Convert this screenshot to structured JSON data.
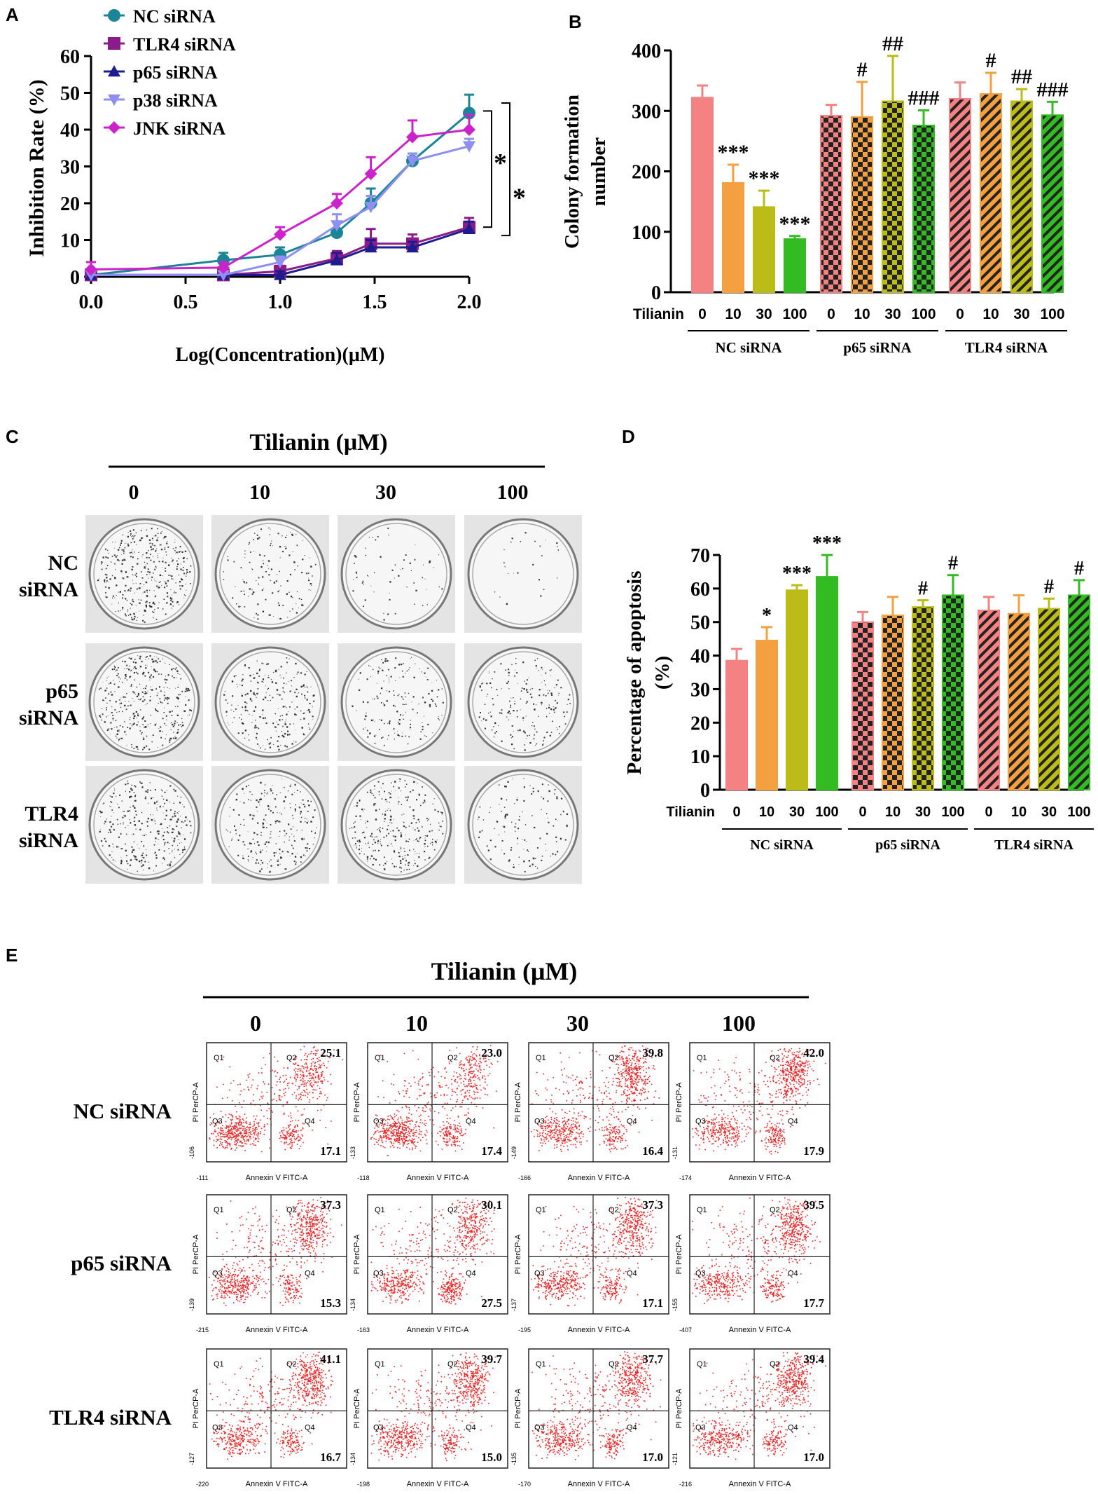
{
  "panels": {
    "a": "A",
    "b": "B",
    "c": "C",
    "d": "D",
    "e": "E"
  },
  "colors": {
    "nc_si": "#1a8596",
    "tlr4_si": "#8b1a8b",
    "p65_si": "#1c1c8f",
    "p38_si": "#8f8ff0",
    "jnk_si": "#cc22cc",
    "pink": "#f58282",
    "orange": "#f5a040",
    "olive": "#bcbc18",
    "green": "#33bb22",
    "dot": "#ee2222"
  },
  "chart_data": [
    {
      "id": "A",
      "type": "line",
      "title": "",
      "xlabel": "Log(Concentration)(μM)",
      "ylabel": "Inhibition Rate (%)",
      "xlim": [
        0,
        2
      ],
      "ylim": [
        0,
        60
      ],
      "xticks": [
        "0.0",
        "0.5",
        "1.0",
        "1.5",
        "2.0"
      ],
      "yticks": [
        "0",
        "10",
        "20",
        "30",
        "40",
        "50",
        "60"
      ],
      "significance": [
        "*",
        "*"
      ],
      "series": [
        {
          "name": "NC siRNA",
          "marker": "circle",
          "x": [
            0,
            0.7,
            1.0,
            1.3,
            1.48,
            1.7,
            2.0
          ],
          "values": [
            0.5,
            4.5,
            6,
            12,
            20,
            31.5,
            44.5
          ],
          "err": [
            1,
            2,
            2,
            3,
            4,
            2,
            5
          ]
        },
        {
          "name": "TLR4 siRNA",
          "marker": "square",
          "x": [
            0,
            0.7,
            1.0,
            1.3,
            1.48,
            1.7,
            2.0
          ],
          "values": [
            0.5,
            0.5,
            1.5,
            5,
            9,
            9,
            13.5
          ],
          "err": [
            1,
            1,
            1.5,
            2,
            4,
            2.5,
            2.5
          ]
        },
        {
          "name": "p65 siRNA",
          "marker": "triangle-up",
          "x": [
            0,
            0.7,
            1.0,
            1.3,
            1.48,
            1.7,
            2.0
          ],
          "values": [
            0.5,
            0.5,
            0.5,
            4.5,
            8,
            8,
            13
          ],
          "err": [
            1,
            1,
            1,
            2,
            2,
            1.5,
            2
          ]
        },
        {
          "name": "p38 siRNA",
          "marker": "triangle-down",
          "x": [
            0,
            0.7,
            1.0,
            1.3,
            1.48,
            1.7,
            2.0
          ],
          "values": [
            0.5,
            0.5,
            4,
            14,
            19,
            31.5,
            35.5
          ],
          "err": [
            1,
            1,
            1.5,
            3,
            3,
            2,
            2
          ]
        },
        {
          "name": "JNK siRNA",
          "marker": "diamond",
          "x": [
            0,
            0.7,
            1.0,
            1.3,
            1.48,
            1.7,
            2.0
          ],
          "values": [
            2,
            2.5,
            11.5,
            20,
            28,
            38,
            40
          ],
          "err": [
            2,
            1.5,
            2,
            2.5,
            4.5,
            4.5,
            4
          ]
        }
      ]
    },
    {
      "id": "B",
      "type": "bar",
      "ylabel": "Colony formation number",
      "ylim": [
        0,
        400
      ],
      "yticks": [
        "0",
        "100",
        "200",
        "300",
        "400"
      ],
      "treatment_label": "Tilianin",
      "categories": [
        "0",
        "10",
        "30",
        "100",
        "0",
        "10",
        "30",
        "100",
        "0",
        "10",
        "30",
        "100"
      ],
      "groups": [
        "NC siRNA",
        "p65 siRNA",
        "TLR4 siRNA"
      ],
      "values": [
        322,
        181,
        141,
        88,
        292,
        290,
        316,
        276,
        320,
        328,
        316,
        293
      ],
      "errors": [
        20,
        30,
        27,
        5,
        18,
        58,
        75,
        25,
        27,
        35,
        20,
        22
      ],
      "annotations": [
        "",
        "***",
        "***",
        "***",
        "",
        "#",
        "##",
        "###",
        "",
        "#",
        "##",
        "###"
      ]
    },
    {
      "id": "D",
      "type": "bar",
      "ylabel": "Percentage of apoptosis (%)",
      "ylim": [
        0,
        70
      ],
      "yticks": [
        "0",
        "10",
        "20",
        "30",
        "40",
        "50",
        "60",
        "70"
      ],
      "treatment_label": "Tilianin",
      "categories": [
        "0",
        "10",
        "30",
        "100",
        "0",
        "10",
        "30",
        "100",
        "0",
        "10",
        "30",
        "100"
      ],
      "groups": [
        "NC siRNA",
        "p65 siRNA",
        "TLR4 siRNA"
      ],
      "values": [
        38.5,
        44.5,
        59.5,
        63.5,
        50,
        52,
        54.5,
        58,
        53.5,
        52.5,
        54,
        58
      ],
      "errors": [
        3.5,
        4,
        1.5,
        6.5,
        3,
        5.5,
        2,
        6,
        4,
        5.5,
        3,
        4.5
      ],
      "annotations": [
        "",
        "*",
        "***",
        "***",
        "",
        "",
        "#",
        "#",
        "",
        "",
        "#",
        "#"
      ]
    }
  ],
  "panel_c": {
    "title": "Tilianin (μM)",
    "concentrations": [
      "0",
      "10",
      "30",
      "100"
    ],
    "rows": [
      {
        "label1": "NC",
        "label2": "siRNA",
        "density": [
          0.95,
          0.35,
          0.15,
          0.06
        ]
      },
      {
        "label1": "p65",
        "label2": "siRNA",
        "density": [
          0.9,
          0.6,
          0.4,
          0.45
        ]
      },
      {
        "label1": "TLR4",
        "label2": "siRNA",
        "density": [
          0.75,
          0.6,
          0.7,
          0.3
        ]
      }
    ]
  },
  "panel_e": {
    "title": "Tilianin (μM)",
    "concentrations": [
      "0",
      "10",
      "30",
      "100"
    ],
    "x_axis_label": "Annexin V FITC-A",
    "y_axis_label": "PI PerCP-A",
    "quadrants": [
      "Q1",
      "Q2",
      "Q3",
      "Q4"
    ],
    "rows": [
      {
        "label": "NC siRNA",
        "plots": [
          {
            "q2": "25.1",
            "q4": "17.1",
            "xmin": "-111",
            "ymin": "-106"
          },
          {
            "q2": "23.0",
            "q4": "17.4",
            "xmin": "-118",
            "ymin": "-133"
          },
          {
            "q2": "39.8",
            "q4": "16.4",
            "xmin": "-166",
            "ymin": "-149"
          },
          {
            "q2": "42.0",
            "q4": "17.9",
            "xmin": "-174",
            "ymin": "-131"
          }
        ]
      },
      {
        "label": "p65 siRNA",
        "plots": [
          {
            "q2": "37.3",
            "q4": "15.3",
            "xmin": "-215",
            "ymin": "-139"
          },
          {
            "q2": "30.1",
            "q4": "27.5",
            "xmin": "-163",
            "ymin": "-134"
          },
          {
            "q2": "37.3",
            "q4": "17.1",
            "xmin": "-195",
            "ymin": "-137"
          },
          {
            "q2": "39.5",
            "q4": "17.7",
            "xmin": "-407",
            "ymin": "-155"
          }
        ]
      },
      {
        "label": "TLR4 siRNA",
        "plots": [
          {
            "q2": "41.1",
            "q4": "16.7",
            "xmin": "-220",
            "ymin": "-127"
          },
          {
            "q2": "39.7",
            "q4": "15.0",
            "xmin": "-198",
            "ymin": "-134"
          },
          {
            "q2": "37.7",
            "q4": "17.0",
            "xmin": "-170",
            "ymin": "-135"
          },
          {
            "q2": "39.4",
            "q4": "17.0",
            "xmin": "-216",
            "ymin": "-121"
          }
        ]
      }
    ]
  }
}
